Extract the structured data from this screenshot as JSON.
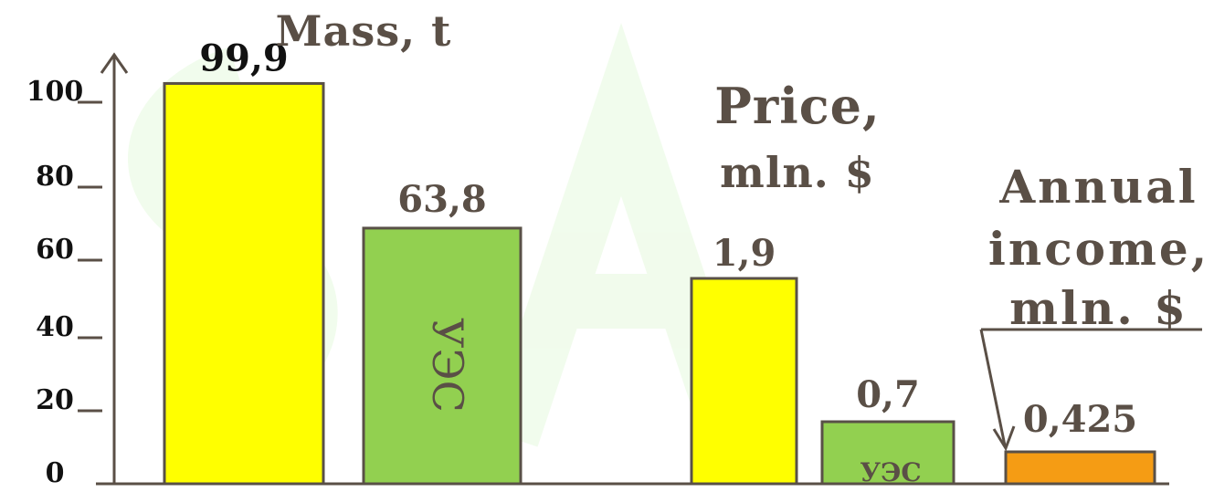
{
  "chart_data": {
    "type": "bar",
    "ylim": [
      0,
      100
    ],
    "y_ticks": [
      "0",
      "20",
      "40",
      "60",
      "80",
      "100"
    ],
    "colors": {
      "mass_bar": "#ffff00",
      "uhs_bar": "#92d050",
      "income_bar": "#f59c14",
      "bar_outline": "#595047",
      "axis": "#5a4f46",
      "title_text": "#5a4f46",
      "label_dark": "#111111",
      "watermark": "#eafbe3"
    },
    "groups": [
      {
        "title_lines": [
          "Mass, t"
        ],
        "bars": [
          {
            "value": 99.9,
            "label": "99,9",
            "series": "mass",
            "inner_label": ""
          },
          {
            "value": 63.8,
            "label": "63,8",
            "series": "uhs",
            "inner_label": "УЭС"
          }
        ]
      },
      {
        "title_lines": [
          "Price,",
          "mln. $"
        ],
        "bars": [
          {
            "value": 1.9,
            "label": "1,9",
            "series": "mass",
            "inner_label": ""
          },
          {
            "value": 0.7,
            "label": "0,7",
            "series": "uhs",
            "inner_label": "УЭС"
          }
        ]
      },
      {
        "title_lines": [
          "Annual",
          "income,",
          "mln. $"
        ],
        "bars": [
          {
            "value": 0.425,
            "label": "0,425",
            "series": "income",
            "inner_label": ""
          }
        ]
      }
    ]
  }
}
